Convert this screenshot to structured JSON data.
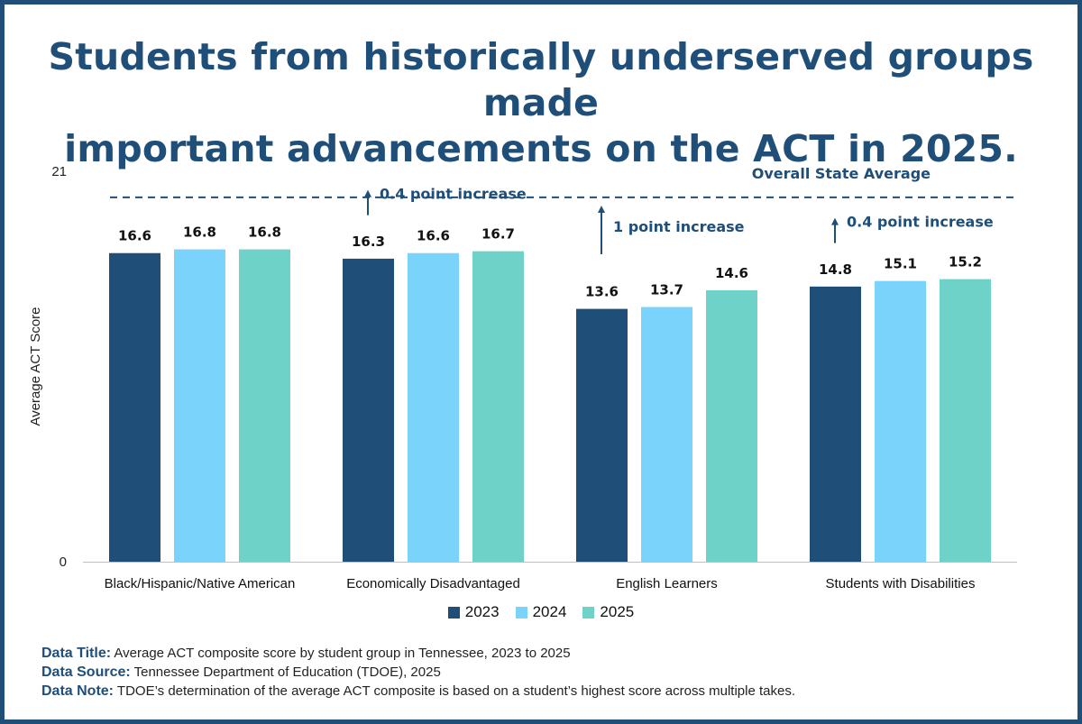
{
  "title": {
    "line1": "Students from historically underserved groups made",
    "line2": "important advancements on the ACT in 2025."
  },
  "colors": {
    "frame": "#1f4e79",
    "title": "#1f4e79",
    "series": [
      "#1f4e79",
      "#79d3fb",
      "#6fd2c8"
    ]
  },
  "chart_data": {
    "type": "bar",
    "categories": [
      "Black/Hispanic/Native American",
      "Economically Disadvantaged",
      "English Learners",
      "Students with Disabilities"
    ],
    "series": [
      {
        "name": "2023",
        "values": [
          16.6,
          16.3,
          13.6,
          14.8
        ]
      },
      {
        "name": "2024",
        "values": [
          16.8,
          16.6,
          13.7,
          15.1
        ]
      },
      {
        "name": "2025",
        "values": [
          16.8,
          16.7,
          14.6,
          15.2
        ]
      }
    ],
    "ylabel": "Average ACT Score",
    "xlabel": "",
    "ylim": [
      0,
      21
    ],
    "yticks": [
      "0",
      "21"
    ],
    "reference_line": {
      "label": "Overall State Average",
      "value": 19.6
    },
    "annotations": [
      {
        "category_index": 1,
        "text": "0.4 point increase"
      },
      {
        "category_index": 2,
        "text": "1 point increase"
      },
      {
        "category_index": 3,
        "text": "0.4 point increase"
      }
    ],
    "legend_position": "bottom"
  },
  "footer": {
    "data_title_label": "Data Title:",
    "data_title": "Average ACT composite score by student group in Tennessee, 2023 to 2025",
    "data_source_label": "Data Source:",
    "data_source": "Tennessee Department of Education (TDOE), 2025",
    "data_note_label": "Data Note:",
    "data_note": "TDOE’s determination of the average ACT composite is based on a student’s highest score across multiple takes."
  }
}
